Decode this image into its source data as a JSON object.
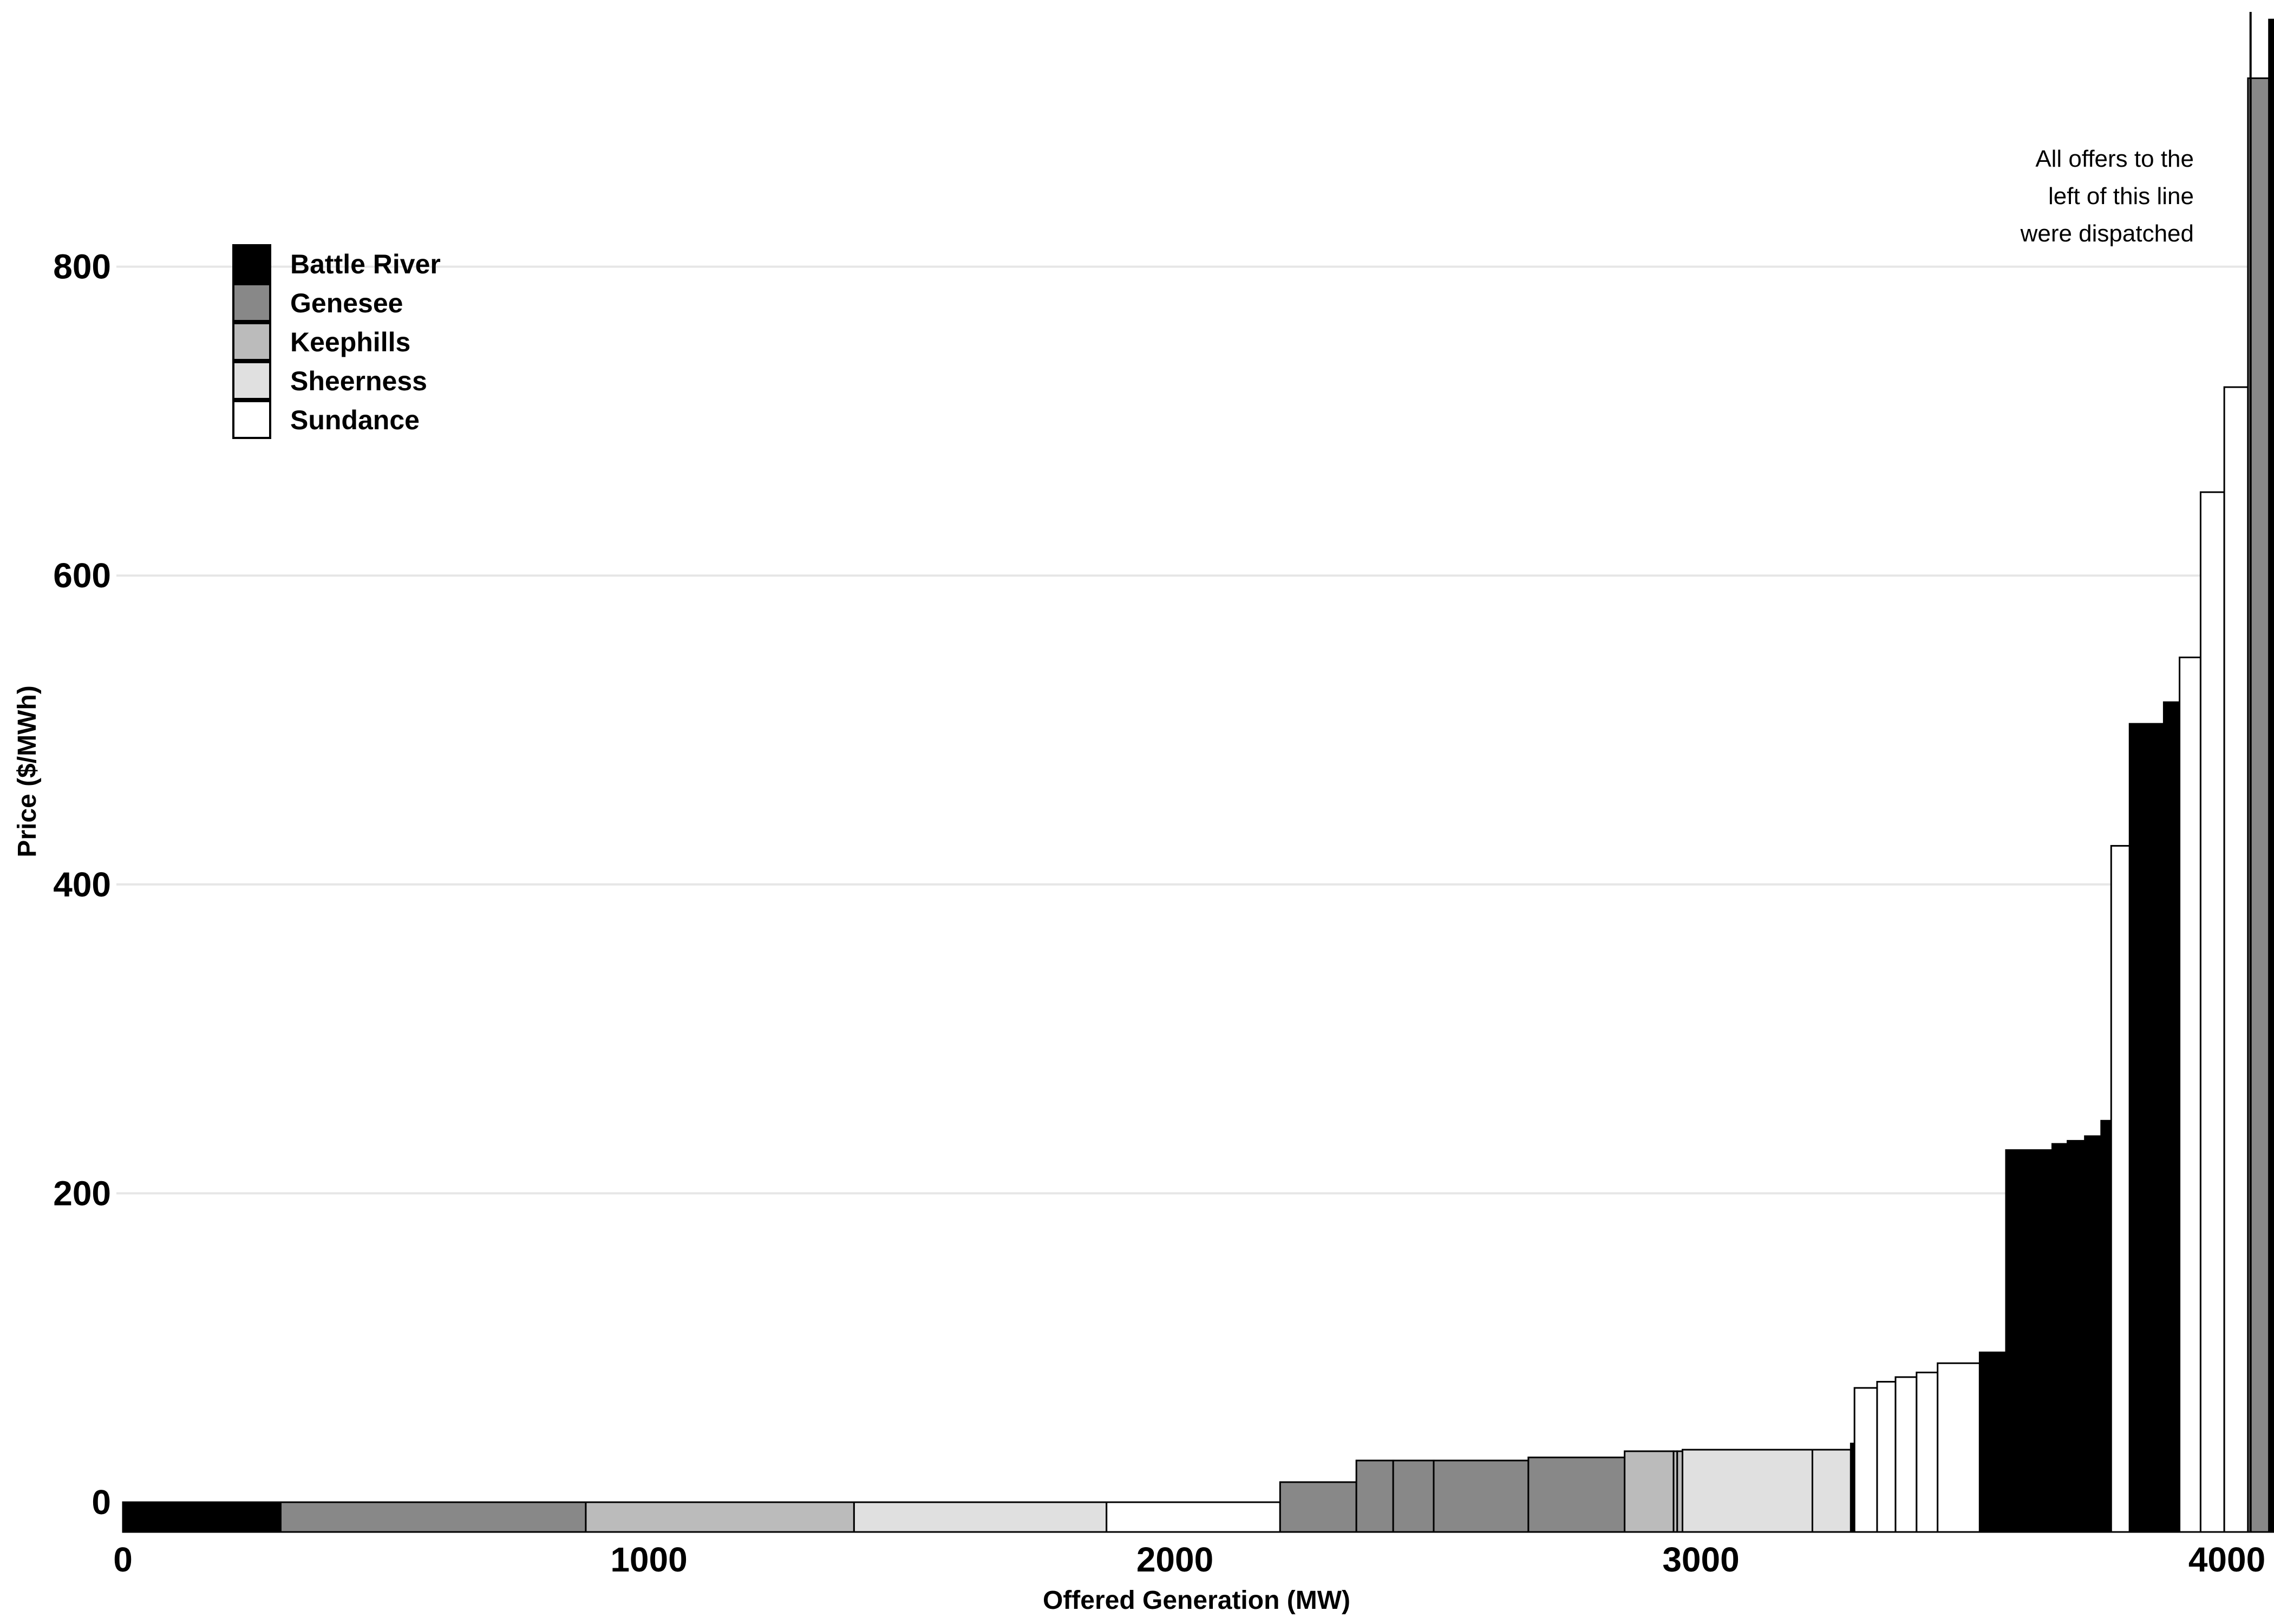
{
  "colors": {
    "Battle River": "#000000",
    "Genesee": "#888888",
    "Keephills": "#bbbbbb",
    "Sheerness": "#e0e0e0",
    "Sundance": "#ffffff",
    "gridline": "#e6e6e6",
    "outline": "#000000"
  },
  "chart_data": {
    "type": "bar",
    "subtype": "merit-order step chart",
    "title": "",
    "xlabel": "Offered Generation (MW)",
    "ylabel": "Price ($/MWh)",
    "xlim": [
      0,
      4180
    ],
    "ylim": [
      -20,
      960
    ],
    "x_ticks": [
      "0",
      "1000",
      "2000",
      "3000",
      "4000"
    ],
    "y_ticks": [
      "0",
      "200",
      "400",
      "600",
      "800"
    ],
    "grid": "horizontal",
    "legend_position": "top-left",
    "legend": [
      "Battle River",
      "Genesee",
      "Keephills",
      "Sheerness",
      "Sundance"
    ],
    "annotation": {
      "lines": [
        "All offers to the",
        "left of this line",
        "were dispatched"
      ],
      "dispatch_line_mw": 4045
    },
    "offers": [
      {
        "plant": "Battle River",
        "from": 0,
        "to": 300,
        "price": 0
      },
      {
        "plant": "Genesee",
        "from": 300,
        "to": 880,
        "price": 0
      },
      {
        "plant": "Keephills",
        "from": 880,
        "to": 1390,
        "price": 0
      },
      {
        "plant": "Sheerness",
        "from": 1390,
        "to": 1870,
        "price": 0
      },
      {
        "plant": "Sundance",
        "from": 1870,
        "to": 2200,
        "price": 0
      },
      {
        "plant": "Genesee",
        "from": 2200,
        "to": 2345,
        "price": 13
      },
      {
        "plant": "Genesee",
        "from": 2345,
        "to": 2415,
        "price": 27
      },
      {
        "plant": "Genesee",
        "from": 2415,
        "to": 2492,
        "price": 27
      },
      {
        "plant": "Genesee",
        "from": 2492,
        "to": 2672,
        "price": 27
      },
      {
        "plant": "Genesee",
        "from": 2672,
        "to": 2855,
        "price": 29
      },
      {
        "plant": "Keephills",
        "from": 2855,
        "to": 2948,
        "price": 33
      },
      {
        "plant": "Keephills",
        "from": 2948,
        "to": 2955,
        "price": 33
      },
      {
        "plant": "Keephills",
        "from": 2955,
        "to": 2965,
        "price": 33
      },
      {
        "plant": "Sheerness",
        "from": 2965,
        "to": 3212,
        "price": 34
      },
      {
        "plant": "Sheerness",
        "from": 3212,
        "to": 3285,
        "price": 34
      },
      {
        "plant": "Battle River",
        "from": 3285,
        "to": 3292,
        "price": 38
      },
      {
        "plant": "Sundance",
        "from": 3292,
        "to": 3335,
        "price": 74
      },
      {
        "plant": "Sundance",
        "from": 3335,
        "to": 3370,
        "price": 78
      },
      {
        "plant": "Sundance",
        "from": 3370,
        "to": 3410,
        "price": 81
      },
      {
        "plant": "Sundance",
        "from": 3410,
        "to": 3450,
        "price": 84
      },
      {
        "plant": "Sundance",
        "from": 3450,
        "to": 3530,
        "price": 90
      },
      {
        "plant": "Battle River",
        "from": 3530,
        "to": 3580,
        "price": 97
      },
      {
        "plant": "Battle River",
        "from": 3580,
        "to": 3668,
        "price": 228
      },
      {
        "plant": "Battle River",
        "from": 3668,
        "to": 3697,
        "price": 232
      },
      {
        "plant": "Battle River",
        "from": 3697,
        "to": 3730,
        "price": 234
      },
      {
        "plant": "Battle River",
        "from": 3730,
        "to": 3761,
        "price": 237
      },
      {
        "plant": "Battle River",
        "from": 3761,
        "to": 3780,
        "price": 247
      },
      {
        "plant": "Sundance",
        "from": 3780,
        "to": 3815,
        "price": 425
      },
      {
        "plant": "Battle River",
        "from": 3815,
        "to": 3880,
        "price": 504
      },
      {
        "plant": "Battle River",
        "from": 3880,
        "to": 3910,
        "price": 518
      },
      {
        "plant": "Sundance",
        "from": 3910,
        "to": 3950,
        "price": 547
      },
      {
        "plant": "Sundance",
        "from": 3950,
        "to": 3995,
        "price": 654
      },
      {
        "plant": "Sundance",
        "from": 3995,
        "to": 4040,
        "price": 722
      },
      {
        "plant": "Genesee",
        "from": 4040,
        "to": 4080,
        "price": 922
      },
      {
        "plant": "Battle River",
        "from": 4080,
        "to": 4125,
        "price": 960
      }
    ]
  }
}
